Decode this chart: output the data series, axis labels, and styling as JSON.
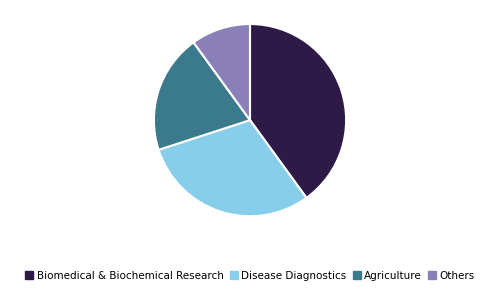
{
  "labels": [
    "Biomedical & Biochemical Research",
    "Disease Diagnostics",
    "Agriculture",
    "Others"
  ],
  "values": [
    40,
    30,
    20,
    10
  ],
  "colors": [
    "#2E1A47",
    "#87CEEB",
    "#3A7A8C",
    "#8B7FB8"
  ],
  "startangle": 90,
  "legend_fontsize": 7.5,
  "background_color": "#ffffff",
  "wedge_edge_color": "#ffffff",
  "wedge_linewidth": 1.5
}
